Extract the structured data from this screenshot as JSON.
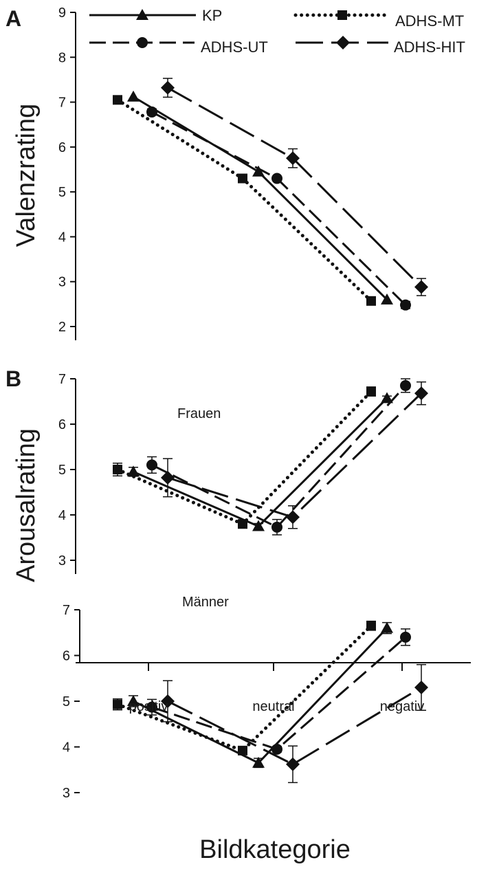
{
  "figure": {
    "panel_a_letter": "A",
    "panel_b_letter": "B",
    "xlabel": "Bildkategorie",
    "ylabel_a": "Valenzrating",
    "ylabel_b": "Arousalrating",
    "subtitle_women": "Frauen",
    "subtitle_men": "Männer"
  },
  "legend": [
    {
      "name": "KP",
      "line": "solid",
      "marker": "triangle"
    },
    {
      "name": "ADHS-MT",
      "line": "dotted",
      "marker": "square"
    },
    {
      "name": "ADHS-UT",
      "line": "dashed",
      "marker": "circle"
    },
    {
      "name": "ADHS-HIT",
      "line": "longdash",
      "marker": "diamond"
    }
  ],
  "chart_data": [
    {
      "type": "line",
      "panel": "A",
      "ylabel": "Valenzrating",
      "categories": [
        "positiv",
        "neutral",
        "negativ"
      ],
      "ylim": [
        2,
        9
      ],
      "yticks": [
        2,
        3,
        4,
        5,
        6,
        7,
        8,
        9
      ],
      "grid": false,
      "legend_position": "top",
      "series": [
        {
          "name": "ADHS-MT",
          "values": [
            7.05,
            5.3,
            2.57
          ],
          "err": [
            0,
            0,
            0
          ]
        },
        {
          "name": "KP",
          "values": [
            7.12,
            5.45,
            2.6
          ],
          "err": [
            0,
            0,
            0
          ]
        },
        {
          "name": "ADHS-UT",
          "values": [
            6.78,
            5.3,
            2.48
          ],
          "err": [
            0.07,
            0,
            0.08
          ]
        },
        {
          "name": "ADHS-HIT",
          "values": [
            7.32,
            5.75,
            2.88
          ],
          "err": [
            0.21,
            0.21,
            0.19
          ]
        }
      ]
    },
    {
      "type": "line",
      "panel": "B",
      "subtitle": "Frauen",
      "ylabel": "Arousalrating",
      "categories": [
        "positiv",
        "neutral",
        "negativ"
      ],
      "ylim": [
        3,
        7
      ],
      "yticks": [
        3,
        4,
        5,
        6,
        7
      ],
      "grid": false,
      "series": [
        {
          "name": "ADHS-MT",
          "values": [
            5.0,
            3.8,
            6.72
          ],
          "err": [
            0.14,
            0.06,
            0.1
          ]
        },
        {
          "name": "KP",
          "values": [
            4.95,
            3.75,
            6.57
          ],
          "err": [
            0.1,
            0.06,
            0.05
          ]
        },
        {
          "name": "ADHS-UT",
          "values": [
            5.1,
            3.73,
            6.85
          ],
          "err": [
            0.18,
            0.17,
            0.15
          ]
        },
        {
          "name": "ADHS-HIT",
          "values": [
            4.82,
            3.95,
            6.68
          ],
          "err": [
            0.42,
            0.25,
            0.25
          ]
        }
      ]
    },
    {
      "type": "line",
      "panel": "B",
      "subtitle": "Männer",
      "ylabel": "Arousalrating",
      "xlabel": "Bildkategorie",
      "categories": [
        "positiv",
        "neutral",
        "negativ"
      ],
      "ylim": [
        3,
        7
      ],
      "yticks": [
        3,
        4,
        5,
        6,
        7
      ],
      "grid": false,
      "series": [
        {
          "name": "ADHS-MT",
          "values": [
            4.93,
            3.92,
            6.65
          ],
          "err": [
            0.12,
            0.06,
            0.1
          ]
        },
        {
          "name": "KP",
          "values": [
            5.0,
            3.65,
            6.6
          ],
          "err": [
            0.12,
            0.1,
            0.12
          ]
        },
        {
          "name": "ADHS-UT",
          "values": [
            4.87,
            3.95,
            6.4
          ],
          "err": [
            0.17,
            0.06,
            0.18
          ]
        },
        {
          "name": "ADHS-HIT",
          "values": [
            5.0,
            3.62,
            5.3
          ],
          "err": [
            0.45,
            0.4,
            0.5
          ]
        }
      ]
    }
  ]
}
